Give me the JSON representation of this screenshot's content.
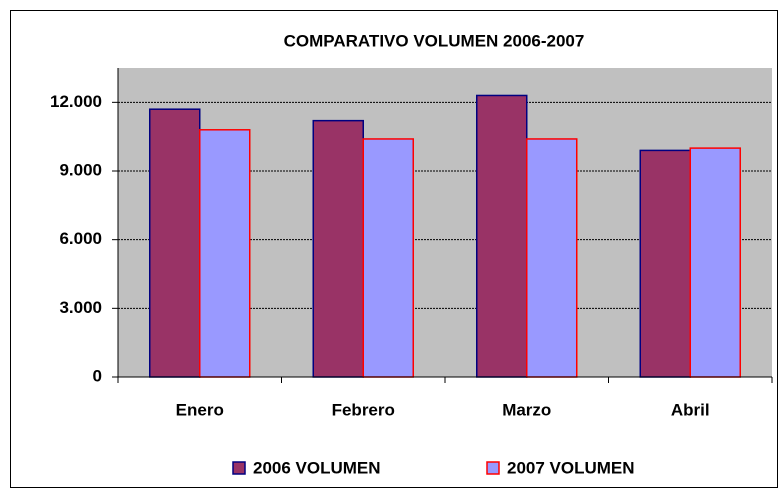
{
  "chart_data": {
    "type": "bar",
    "title": "COMPARATIVO VOLUMEN 2006-2007",
    "categories": [
      "Enero",
      "Febrero",
      "Marzo",
      "Abril"
    ],
    "series": [
      {
        "name": "2006 VOLUMEN",
        "color": "#993366",
        "border": "#000080",
        "values": [
          11700,
          11200,
          12300,
          9900
        ]
      },
      {
        "name": "2007 VOLUMEN",
        "color": "#9999ff",
        "border": "#ff0000",
        "values": [
          10800,
          10400,
          10400,
          10000
        ]
      }
    ],
    "ylim": [
      0,
      13500
    ],
    "yticks": [
      0,
      {
        "value": 3000,
        "label": "3.000"
      },
      {
        "value": 6000,
        "label": "6.000"
      },
      {
        "value": 9000,
        "label": "9.000"
      },
      {
        "value": 12000,
        "label": "12.000"
      }
    ],
    "grid": true,
    "legend": "bottom"
  }
}
